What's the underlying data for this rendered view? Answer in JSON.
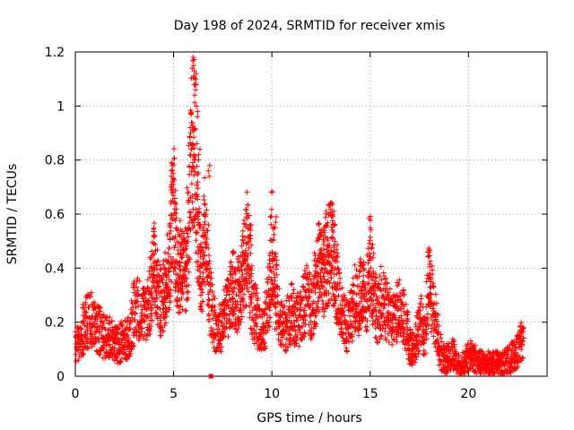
{
  "chart_data": {
    "type": "scatter",
    "title": "Day 198 of 2024, SRMTID for receiver xmis",
    "xlabel": "GPS time / hours",
    "ylabel": "SRMTID / TECUs",
    "xlim": [
      0,
      24
    ],
    "ylim": [
      0,
      1.2
    ],
    "x_ticks": [
      0,
      5,
      10,
      15,
      20
    ],
    "x_tick_labels": [
      "0",
      "5",
      "10",
      "15",
      "20"
    ],
    "y_ticks": [
      0,
      0.2,
      0.4,
      0.6,
      0.8,
      1.0,
      1.2
    ],
    "y_tick_labels": [
      "0",
      "0.2",
      "0.4",
      "0.6",
      "0.8",
      "1",
      "1.2"
    ],
    "grid": true,
    "marker": "plus",
    "color": "#ff0000",
    "series": [
      {
        "name": "SRMTID",
        "x": [
          0.0,
          0.2,
          0.4,
          0.6,
          0.8,
          1.0,
          1.2,
          1.4,
          1.6,
          1.8,
          2.0,
          2.2,
          2.4,
          2.6,
          2.8,
          3.0,
          3.2,
          3.4,
          3.6,
          3.8,
          4.0,
          4.2,
          4.4,
          4.6,
          4.8,
          5.0,
          5.2,
          5.4,
          5.6,
          5.8,
          6.0,
          6.2,
          6.4,
          6.6,
          6.8,
          7.0,
          7.2,
          7.4,
          7.6,
          7.8,
          8.0,
          8.2,
          8.4,
          8.6,
          8.8,
          9.0,
          9.2,
          9.4,
          9.6,
          9.8,
          10.0,
          10.2,
          10.4,
          10.6,
          10.8,
          11.0,
          11.2,
          11.4,
          11.6,
          11.8,
          12.0,
          12.2,
          12.4,
          12.6,
          12.8,
          13.0,
          13.2,
          13.4,
          13.6,
          13.8,
          14.0,
          14.2,
          14.4,
          14.6,
          14.8,
          15.0,
          15.2,
          15.4,
          15.6,
          15.8,
          16.0,
          16.2,
          16.4,
          16.6,
          16.8,
          17.0,
          17.2,
          17.4,
          17.6,
          17.8,
          18.0,
          18.2,
          18.4,
          18.6,
          18.8,
          19.0,
          19.2,
          19.4,
          19.6,
          19.8,
          20.0,
          20.2,
          20.4,
          20.6,
          20.8,
          21.0,
          21.2,
          21.4,
          21.6,
          21.8,
          22.0,
          22.2,
          22.4,
          22.6,
          22.8
        ],
        "y": [
          0.11,
          0.14,
          0.17,
          0.2,
          0.21,
          0.19,
          0.17,
          0.15,
          0.14,
          0.15,
          0.12,
          0.11,
          0.14,
          0.13,
          0.16,
          0.24,
          0.26,
          0.22,
          0.25,
          0.27,
          0.42,
          0.3,
          0.26,
          0.35,
          0.42,
          0.65,
          0.38,
          0.42,
          0.36,
          0.6,
          0.92,
          0.6,
          0.32,
          0.56,
          0.3,
          0.22,
          0.16,
          0.18,
          0.22,
          0.26,
          0.33,
          0.28,
          0.35,
          0.42,
          0.5,
          0.25,
          0.22,
          0.18,
          0.16,
          0.28,
          0.5,
          0.3,
          0.2,
          0.17,
          0.2,
          0.25,
          0.18,
          0.22,
          0.26,
          0.3,
          0.25,
          0.32,
          0.42,
          0.38,
          0.44,
          0.47,
          0.4,
          0.3,
          0.22,
          0.18,
          0.21,
          0.3,
          0.26,
          0.34,
          0.22,
          0.45,
          0.3,
          0.22,
          0.28,
          0.24,
          0.22,
          0.2,
          0.26,
          0.24,
          0.2,
          0.12,
          0.08,
          0.16,
          0.2,
          0.15,
          0.36,
          0.25,
          0.18,
          0.08,
          0.06,
          0.07,
          0.09,
          0.05,
          0.03,
          0.05,
          0.07,
          0.08,
          0.06,
          0.05,
          0.04,
          0.05,
          0.04,
          0.05,
          0.04,
          0.05,
          0.06,
          0.07,
          0.08,
          0.11,
          0.14
        ]
      }
    ],
    "outliers": [
      {
        "x": 6.05,
        "y": 1.15
      },
      {
        "x": 6.15,
        "y": 1.12
      },
      {
        "x": 6.1,
        "y": 1.08
      },
      {
        "x": 6.2,
        "y": 1.0
      },
      {
        "x": 6.0,
        "y": 0.81
      },
      {
        "x": 6.3,
        "y": 0.84
      },
      {
        "x": 4.9,
        "y": 0.76
      },
      {
        "x": 5.0,
        "y": 0.75
      },
      {
        "x": 6.8,
        "y": 0.78
      },
      {
        "x": 10.2,
        "y": 0.59
      },
      {
        "x": 8.9,
        "y": 0.56
      },
      {
        "x": 6.9,
        "y": 0.0
      }
    ]
  }
}
